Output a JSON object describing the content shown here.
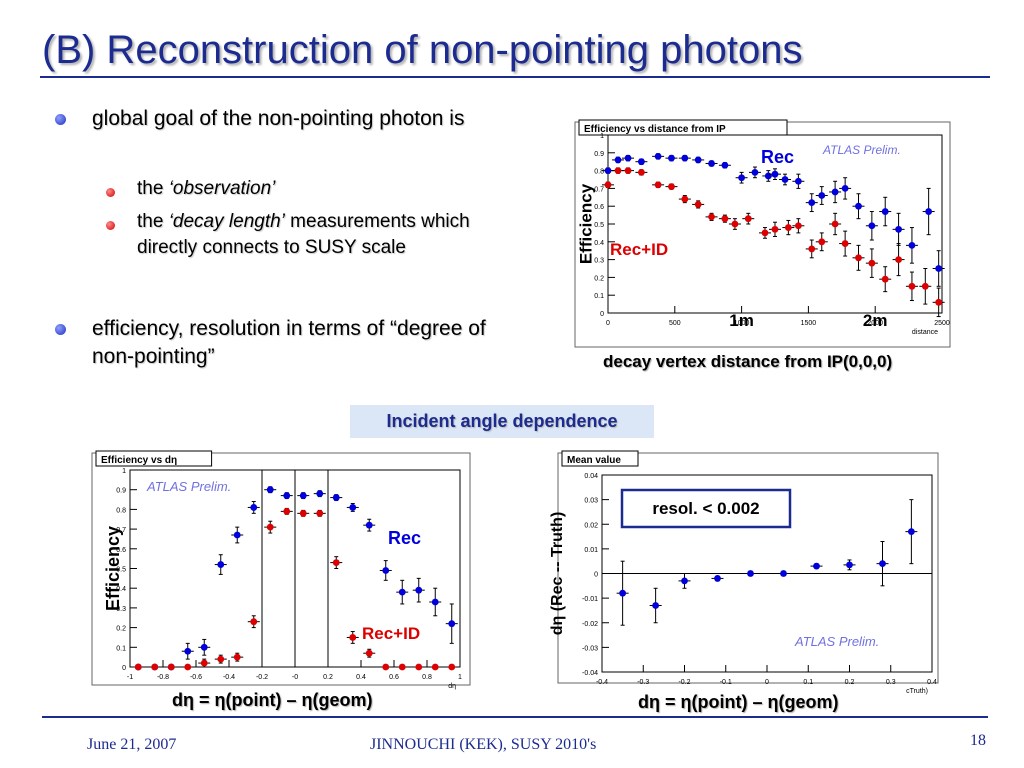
{
  "slide": {
    "title": "(B) Reconstruction of non-pointing photons",
    "bullets": [
      {
        "text": "global goal of the non-pointing photon is",
        "sub": [
          {
            "prefix": "the ",
            "em": "‘observation’",
            "suffix": ""
          },
          {
            "prefix": "the ",
            "em": "‘decay length’",
            "suffix": " measurements which directly connects to SUSY scale"
          }
        ]
      },
      {
        "text": "efficiency, resolution in terms of “degree of non-pointing”",
        "sub": []
      }
    ],
    "caption_top": "decay vertex distance from IP(0,0,0)",
    "badge": "Incident angle dependence",
    "caption_bl": "dη = η(point) – η(geom)",
    "caption_br": "dη = η(point) – η(geom)",
    "footer_date": "June 21,  2007",
    "footer_center": "JINNOUCHI (KEK), SUSY 2010's",
    "page_number": "18",
    "colors": {
      "title": "#1c2b8f",
      "rec": "#0000dd",
      "recid": "#dd0000",
      "prelim": "#7070e0"
    }
  },
  "chart_data": [
    {
      "type": "scatter",
      "title": "Efficiency vs distance from IP",
      "ylabel": "Efficiency",
      "xlabel": "distance",
      "xlim": [
        0,
        2500
      ],
      "ylim": [
        0,
        1
      ],
      "xticks": [
        "0",
        "500",
        "1000",
        "1500",
        "2000",
        "2500"
      ],
      "yticks": [
        "0",
        "0.1",
        "0.2",
        "0.3",
        "0.4",
        "0.5",
        "0.6",
        "0.7",
        "0.8",
        "0.9",
        "1"
      ],
      "annotations": {
        "prelim": "ATLAS Prelim.",
        "rec": "Rec",
        "recid": "Rec+ID",
        "m1": "1m",
        "m2": "2m"
      },
      "annotation_x": {
        "m1": 1000,
        "m2": 2000
      },
      "series": [
        {
          "name": "Rec",
          "color": "#0000dd",
          "points": [
            {
              "x": 0,
              "y": 0.8,
              "e": 0.015
            },
            {
              "x": 75,
              "y": 0.86,
              "e": 0.015
            },
            {
              "x": 150,
              "y": 0.87,
              "e": 0.015
            },
            {
              "x": 250,
              "y": 0.85,
              "e": 0.015
            },
            {
              "x": 375,
              "y": 0.88,
              "e": 0.015
            },
            {
              "x": 475,
              "y": 0.87,
              "e": 0.015
            },
            {
              "x": 575,
              "y": 0.87,
              "e": 0.015
            },
            {
              "x": 675,
              "y": 0.86,
              "e": 0.015
            },
            {
              "x": 775,
              "y": 0.84,
              "e": 0.015
            },
            {
              "x": 875,
              "y": 0.83,
              "e": 0.015
            },
            {
              "x": 1000,
              "y": 0.76,
              "e": 0.03
            },
            {
              "x": 1100,
              "y": 0.79,
              "e": 0.03
            },
            {
              "x": 1200,
              "y": 0.77,
              "e": 0.03
            },
            {
              "x": 1250,
              "y": 0.78,
              "e": 0.03
            },
            {
              "x": 1325,
              "y": 0.75,
              "e": 0.03
            },
            {
              "x": 1425,
              "y": 0.74,
              "e": 0.04
            },
            {
              "x": 1525,
              "y": 0.62,
              "e": 0.05
            },
            {
              "x": 1600,
              "y": 0.66,
              "e": 0.05
            },
            {
              "x": 1700,
              "y": 0.68,
              "e": 0.06
            },
            {
              "x": 1775,
              "y": 0.7,
              "e": 0.06
            },
            {
              "x": 1875,
              "y": 0.6,
              "e": 0.07
            },
            {
              "x": 1975,
              "y": 0.49,
              "e": 0.08
            },
            {
              "x": 2075,
              "y": 0.57,
              "e": 0.08
            },
            {
              "x": 2175,
              "y": 0.47,
              "e": 0.09
            },
            {
              "x": 2275,
              "y": 0.38,
              "e": 0.1
            },
            {
              "x": 2400,
              "y": 0.57,
              "e": 0.13
            },
            {
              "x": 2475,
              "y": 0.25,
              "e": 0.1
            }
          ]
        },
        {
          "name": "Rec+ID",
          "color": "#dd0000",
          "points": [
            {
              "x": 0,
              "y": 0.72,
              "e": 0.015
            },
            {
              "x": 75,
              "y": 0.8,
              "e": 0.015
            },
            {
              "x": 150,
              "y": 0.8,
              "e": 0.015
            },
            {
              "x": 250,
              "y": 0.79,
              "e": 0.015
            },
            {
              "x": 375,
              "y": 0.72,
              "e": 0.015
            },
            {
              "x": 475,
              "y": 0.71,
              "e": 0.015
            },
            {
              "x": 575,
              "y": 0.64,
              "e": 0.02
            },
            {
              "x": 675,
              "y": 0.61,
              "e": 0.02
            },
            {
              "x": 775,
              "y": 0.54,
              "e": 0.02
            },
            {
              "x": 875,
              "y": 0.53,
              "e": 0.02
            },
            {
              "x": 950,
              "y": 0.5,
              "e": 0.03
            },
            {
              "x": 1050,
              "y": 0.53,
              "e": 0.03
            },
            {
              "x": 1175,
              "y": 0.45,
              "e": 0.03
            },
            {
              "x": 1250,
              "y": 0.47,
              "e": 0.04
            },
            {
              "x": 1350,
              "y": 0.48,
              "e": 0.04
            },
            {
              "x": 1425,
              "y": 0.49,
              "e": 0.04
            },
            {
              "x": 1525,
              "y": 0.36,
              "e": 0.05
            },
            {
              "x": 1600,
              "y": 0.4,
              "e": 0.05
            },
            {
              "x": 1700,
              "y": 0.5,
              "e": 0.06
            },
            {
              "x": 1775,
              "y": 0.39,
              "e": 0.07
            },
            {
              "x": 1875,
              "y": 0.31,
              "e": 0.07
            },
            {
              "x": 1975,
              "y": 0.28,
              "e": 0.08
            },
            {
              "x": 2075,
              "y": 0.19,
              "e": 0.07
            },
            {
              "x": 2175,
              "y": 0.3,
              "e": 0.09
            },
            {
              "x": 2275,
              "y": 0.15,
              "e": 0.08
            },
            {
              "x": 2375,
              "y": 0.15,
              "e": 0.1
            },
            {
              "x": 2475,
              "y": 0.06,
              "e": 0.08
            }
          ]
        }
      ]
    },
    {
      "type": "scatter",
      "title": "Efficiency vs dη",
      "ylabel": "Efficiency",
      "xlabel": "dη",
      "xlim": [
        -1,
        1
      ],
      "ylim": [
        0,
        1
      ],
      "xticks": [
        "-1",
        "-0.8",
        "-0.6",
        "-0.4",
        "-0.2",
        "-0",
        "0.2",
        "0.4",
        "0.6",
        "0.8",
        "1"
      ],
      "yticks": [
        "0",
        "0.1",
        "0.2",
        "0.3",
        "0.4",
        "0.5",
        "0.6",
        "0.7",
        "0.8",
        "0.9",
        "1"
      ],
      "vlines": [
        -0.2,
        0,
        0.2
      ],
      "annotations": {
        "prelim": "ATLAS Prelim.",
        "rec": "Rec",
        "recid": "Rec+ID"
      },
      "series": [
        {
          "name": "Rec",
          "color": "#0000dd",
          "points": [
            {
              "x": -0.95,
              "y": 0,
              "e": 0
            },
            {
              "x": -0.85,
              "y": 0,
              "e": 0
            },
            {
              "x": -0.75,
              "y": 0,
              "e": 0
            },
            {
              "x": -0.65,
              "y": 0.08,
              "e": 0.04
            },
            {
              "x": -0.55,
              "y": 0.1,
              "e": 0.04
            },
            {
              "x": -0.45,
              "y": 0.52,
              "e": 0.05
            },
            {
              "x": -0.35,
              "y": 0.67,
              "e": 0.04
            },
            {
              "x": -0.25,
              "y": 0.81,
              "e": 0.03
            },
            {
              "x": -0.15,
              "y": 0.9,
              "e": 0.015
            },
            {
              "x": -0.05,
              "y": 0.87,
              "e": 0.015
            },
            {
              "x": 0.05,
              "y": 0.87,
              "e": 0.015
            },
            {
              "x": 0.15,
              "y": 0.88,
              "e": 0.015
            },
            {
              "x": 0.25,
              "y": 0.86,
              "e": 0.015
            },
            {
              "x": 0.35,
              "y": 0.81,
              "e": 0.02
            },
            {
              "x": 0.45,
              "y": 0.72,
              "e": 0.03
            },
            {
              "x": 0.55,
              "y": 0.49,
              "e": 0.05
            },
            {
              "x": 0.65,
              "y": 0.38,
              "e": 0.06
            },
            {
              "x": 0.75,
              "y": 0.39,
              "e": 0.06
            },
            {
              "x": 0.85,
              "y": 0.33,
              "e": 0.07
            },
            {
              "x": 0.95,
              "y": 0.22,
              "e": 0.1
            }
          ]
        },
        {
          "name": "Rec+ID",
          "color": "#dd0000",
          "points": [
            {
              "x": -0.95,
              "y": 0,
              "e": 0
            },
            {
              "x": -0.85,
              "y": 0,
              "e": 0
            },
            {
              "x": -0.75,
              "y": 0,
              "e": 0
            },
            {
              "x": -0.65,
              "y": 0,
              "e": 0
            },
            {
              "x": -0.55,
              "y": 0.02,
              "e": 0.02
            },
            {
              "x": -0.45,
              "y": 0.04,
              "e": 0.02
            },
            {
              "x": -0.35,
              "y": 0.05,
              "e": 0.02
            },
            {
              "x": -0.25,
              "y": 0.23,
              "e": 0.03
            },
            {
              "x": -0.15,
              "y": 0.71,
              "e": 0.03
            },
            {
              "x": -0.05,
              "y": 0.79,
              "e": 0.015
            },
            {
              "x": 0.05,
              "y": 0.78,
              "e": 0.015
            },
            {
              "x": 0.15,
              "y": 0.78,
              "e": 0.015
            },
            {
              "x": 0.25,
              "y": 0.53,
              "e": 0.03
            },
            {
              "x": 0.35,
              "y": 0.15,
              "e": 0.03
            },
            {
              "x": 0.45,
              "y": 0.07,
              "e": 0.02
            },
            {
              "x": 0.55,
              "y": 0,
              "e": 0
            },
            {
              "x": 0.65,
              "y": 0,
              "e": 0
            },
            {
              "x": 0.75,
              "y": 0,
              "e": 0
            },
            {
              "x": 0.85,
              "y": 0,
              "e": 0
            },
            {
              "x": 0.95,
              "y": 0,
              "e": 0
            }
          ]
        }
      ]
    },
    {
      "type": "scatter",
      "title": "Mean value",
      "ylabel": "dη (Rec -- Truth)",
      "xlabel": "cTruth)",
      "xlim": [
        -0.4,
        0.4
      ],
      "ylim": [
        -0.04,
        0.04
      ],
      "xticks": [
        "-0.4",
        "-0.3",
        "-0.2",
        "-0.1",
        "0",
        "0.1",
        "0.2",
        "0.3",
        "0.4"
      ],
      "yticks": [
        "-0.04",
        "-0.03",
        "-0.02",
        "-0.01",
        "0",
        "0.01",
        "0.02",
        "0.03",
        "0.04"
      ],
      "hline": 0,
      "annotations": {
        "resol": "resol. < 0.002",
        "prelim": "ATLAS Prelim."
      },
      "series": [
        {
          "name": "",
          "color": "#0000dd",
          "points": [
            {
              "x": -0.35,
              "y": -0.008,
              "e": 0.013
            },
            {
              "x": -0.27,
              "y": -0.013,
              "e": 0.007
            },
            {
              "x": -0.2,
              "y": -0.003,
              "e": 0.003
            },
            {
              "x": -0.12,
              "y": -0.002,
              "e": 0.001
            },
            {
              "x": -0.04,
              "y": 0,
              "e": 0.001
            },
            {
              "x": 0.04,
              "y": 0,
              "e": 0.001
            },
            {
              "x": 0.12,
              "y": 0.003,
              "e": 0.001
            },
            {
              "x": 0.2,
              "y": 0.0035,
              "e": 0.002
            },
            {
              "x": 0.28,
              "y": 0.004,
              "e": 0.009
            },
            {
              "x": 0.35,
              "y": 0.017,
              "e": 0.013
            }
          ]
        }
      ]
    }
  ]
}
